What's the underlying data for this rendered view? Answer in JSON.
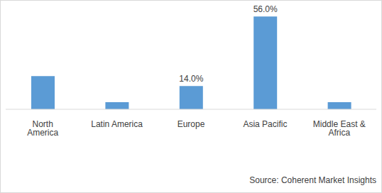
{
  "chart_data": {
    "type": "bar",
    "categories": [
      "North America",
      "Latin America",
      "Europe",
      "Asia Pacific",
      "Middle East & Africa"
    ],
    "values": [
      20,
      4.3,
      14,
      56,
      4.3
    ],
    "value_labels": [
      null,
      null,
      "14.0%",
      "56.0%",
      null
    ],
    "data_labels": true,
    "color": "#5b9bd5",
    "ylim": [
      0,
      60
    ],
    "grid": false,
    "tick_labels": "x",
    "annotation": "Source: Coherent Market Insights"
  }
}
